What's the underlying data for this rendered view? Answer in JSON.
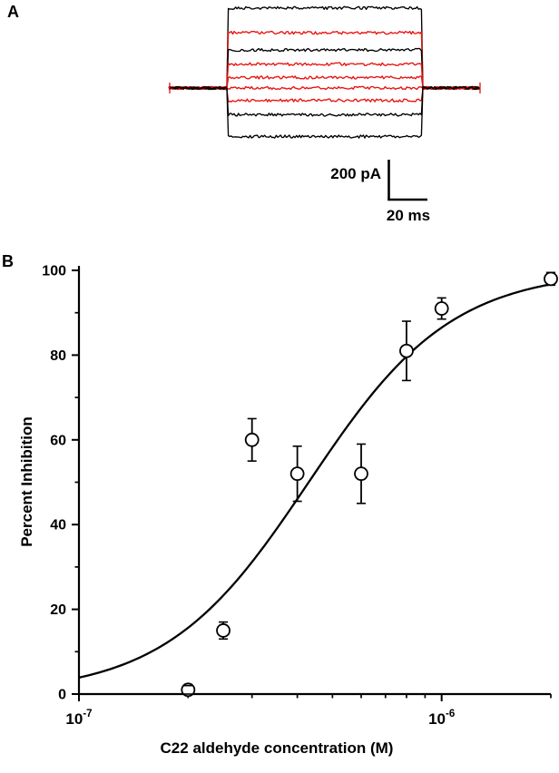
{
  "panel_a": {
    "label": "A",
    "scale_bar": {
      "vertical_label": "200 pA",
      "horizontal_label": "20 ms"
    },
    "colors": {
      "black_trace": "#000000",
      "red_trace": "#e81210"
    },
    "traces": [
      {
        "color": "black",
        "level_pA": 420
      },
      {
        "color": "red",
        "level_pA": 290
      },
      {
        "color": "black",
        "level_pA": 200
      },
      {
        "color": "red",
        "level_pA": 125
      },
      {
        "color": "red",
        "level_pA": 55
      },
      {
        "color": "red",
        "level_pA": 0
      },
      {
        "color": "red",
        "level_pA": -65
      },
      {
        "color": "black",
        "level_pA": -140
      },
      {
        "color": "black",
        "level_pA": -255
      }
    ]
  },
  "panel_b": {
    "label": "B"
  },
  "chart_data": {
    "type": "scatter",
    "title": "",
    "xlabel": "C22 aldehyde concentration (M)",
    "ylabel": "Percent Inhibition",
    "x_scale": "log",
    "xlim": [
      1e-07,
      2e-06
    ],
    "ylim": [
      0,
      100
    ],
    "grid": false,
    "legend": null,
    "marker": "open-circle",
    "x_major_ticks": [
      {
        "value": 1e-07,
        "base": "10",
        "exp": "-7"
      },
      {
        "value": 1e-06,
        "base": "10",
        "exp": "-6"
      }
    ],
    "x_minor_ticks": [
      2e-07,
      3e-07,
      4e-07,
      5e-07,
      6e-07,
      7e-07,
      8e-07,
      9e-07,
      2e-06
    ],
    "y_ticks": [
      0,
      20,
      40,
      60,
      80,
      100
    ],
    "y_minor_ticks": [
      10,
      30,
      50,
      70,
      90
    ],
    "points": [
      {
        "x": 2e-07,
        "y": 1,
        "err": 1
      },
      {
        "x": 2.5e-07,
        "y": 15,
        "err": 2
      },
      {
        "x": 3e-07,
        "y": 60,
        "err": 5
      },
      {
        "x": 4e-07,
        "y": 52,
        "err": 6.5
      },
      {
        "x": 6e-07,
        "y": 52,
        "err": 7
      },
      {
        "x": 8e-07,
        "y": 81,
        "err": 7
      },
      {
        "x": 1e-06,
        "y": 91,
        "err": 2.5
      },
      {
        "x": 2e-06,
        "y": 98,
        "err": 1.5
      }
    ],
    "fit_curve": {
      "model": "hill",
      "ec50": 4.3e-07,
      "hill_n": 2.2,
      "ymax": 100
    }
  }
}
